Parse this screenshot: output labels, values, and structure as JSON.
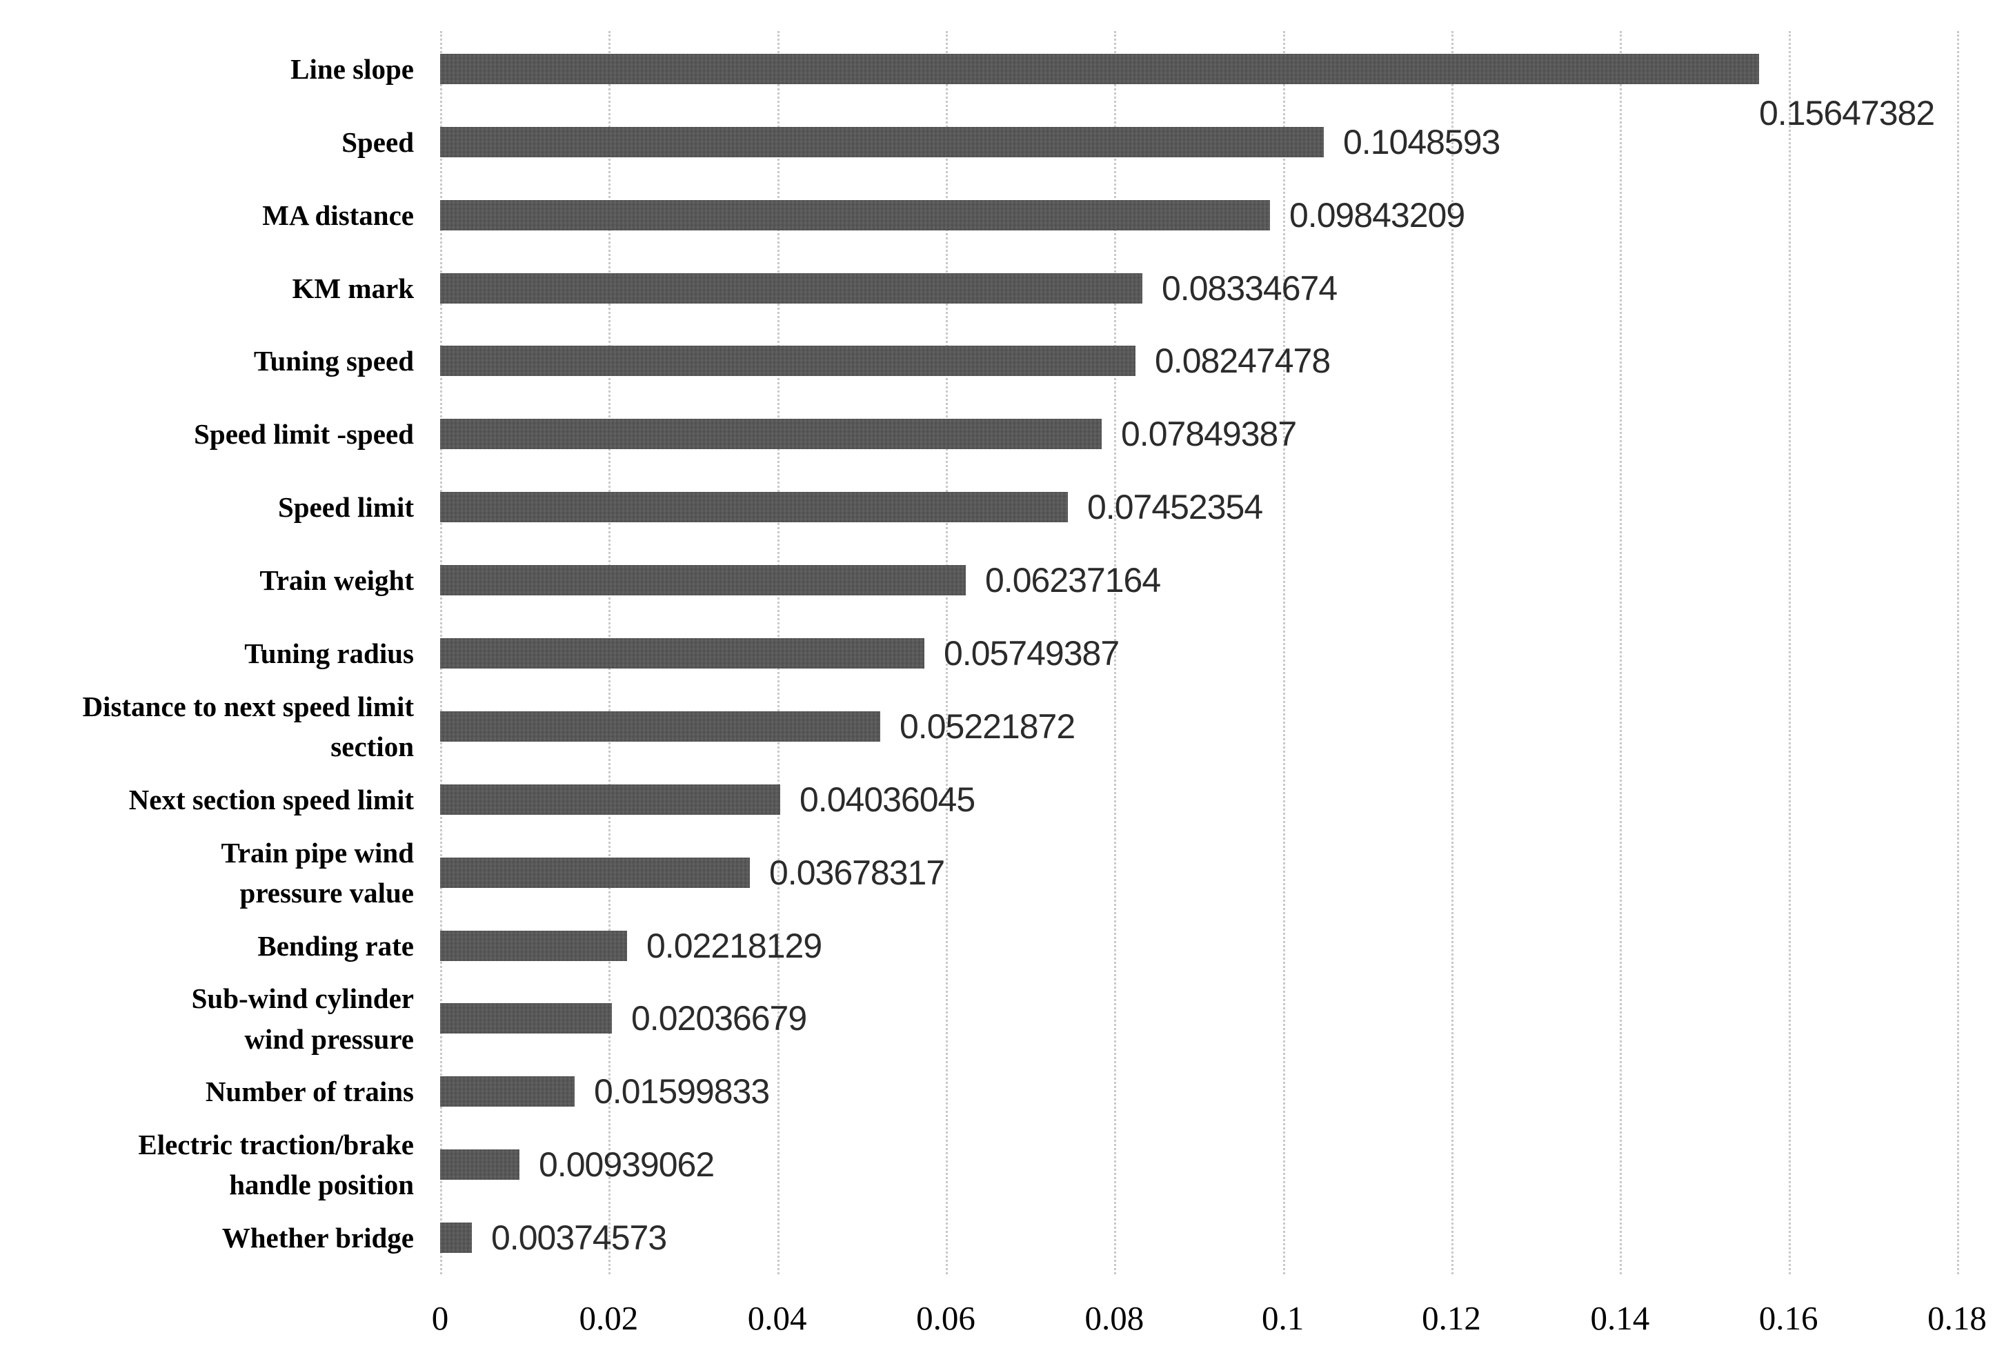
{
  "chart_data": {
    "type": "bar",
    "orientation": "horizontal",
    "title": "",
    "xlabel": "",
    "ylabel": "",
    "xlim": [
      0,
      0.18
    ],
    "grid": "vertical",
    "gridline_style": "dotted",
    "legend": "none",
    "bar_color": "#575757",
    "gridline_color": "#c8c8c8",
    "category_label_color": "#000000",
    "value_label_color": "#2b2b2b",
    "background_color": "#ffffff",
    "categories": [
      "Line slope",
      "Speed",
      "MA distance",
      "KM mark",
      "Tuning speed",
      "Speed limit -speed",
      "Speed limit",
      "Train weight",
      "Tuning radius",
      "Distance to next speed limit\nsection",
      "Next section speed limit",
      "Train pipe wind\npressure value",
      "Bending rate",
      "Sub-wind cylinder\nwind pressure",
      "Number of trains",
      "Electric traction/brake\nhandle position",
      "Whether bridge"
    ],
    "values": [
      0.15647382,
      0.1048593,
      0.09843209,
      0.08334674,
      0.08247478,
      0.07849387,
      0.07452354,
      0.06237164,
      0.05749387,
      0.05221872,
      0.04036045,
      0.03678317,
      0.02218129,
      0.02036679,
      0.01599833,
      0.00939062,
      0.00374573
    ],
    "value_labels": [
      "0.15647382",
      "0.1048593",
      "0.09843209",
      "0.08334674",
      "0.08247478",
      "0.07849387",
      "0.07452354",
      "0.06237164",
      "0.05749387",
      "0.05221872",
      "0.04036045",
      "0.03678317",
      "0.02218129",
      "0.02036679",
      "0.01599833",
      "0.00939062",
      "0.00374573"
    ],
    "x_ticks": [
      0,
      0.02,
      0.04,
      0.06,
      0.08,
      0.1,
      0.12,
      0.14,
      0.16,
      0.18
    ],
    "x_tick_labels": [
      "0",
      "0.02",
      "0.04",
      "0.06",
      "0.08",
      "0.1",
      "0.12",
      "0.14",
      "0.16",
      "0.18"
    ],
    "first_value_label_below_bar": true
  }
}
